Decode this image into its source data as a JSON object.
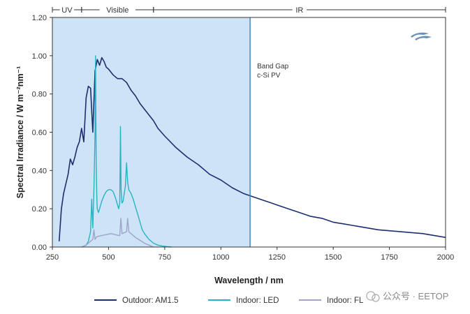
{
  "chart_data": {
    "type": "line",
    "xlabel": "Wavelength / nm",
    "ylabel": "Spectral Irradiance / W m⁻²nm⁻¹",
    "xlim": [
      250,
      2000
    ],
    "ylim": [
      0,
      1.2
    ],
    "x_ticks": [
      250,
      500,
      750,
      1000,
      1250,
      1500,
      1750,
      2000
    ],
    "y_ticks": [
      "0.00",
      "0.20",
      "0.40",
      "0.60",
      "0.80",
      "1.00",
      "1.20"
    ],
    "grid": false,
    "legend_position": "bottom",
    "spectral_regions": [
      {
        "label": "UV",
        "from": 250,
        "to": 380
      },
      {
        "label": "Visible",
        "from": 380,
        "to": 700
      },
      {
        "label": "IR",
        "from": 700,
        "to": 2000
      }
    ],
    "band_gap": {
      "wavelength": 1130,
      "label_line1": "Band Gap",
      "label_line2": "c-Si PV"
    },
    "brand": "Ossila",
    "colors": {
      "am15": "#1c2e6e",
      "led": "#26b4c2",
      "fl": "#9ea3cc",
      "shade": "#cfe3f7",
      "bandgap_line": "#4a84c4",
      "axis": "#333333",
      "brand": "#6a8fb5"
    },
    "series": [
      {
        "name": "Outdoor: AM1.5",
        "x": [
          280,
          290,
          300,
          310,
          320,
          330,
          340,
          350,
          360,
          370,
          380,
          390,
          400,
          410,
          420,
          430,
          440,
          450,
          460,
          470,
          480,
          490,
          500,
          520,
          540,
          560,
          580,
          600,
          620,
          640,
          660,
          680,
          700,
          720,
          750,
          800,
          850,
          900,
          950,
          1000,
          1050,
          1100,
          1150,
          1200,
          1250,
          1300,
          1350,
          1400,
          1450,
          1500,
          1550,
          1600,
          1650,
          1700,
          1750,
          1800,
          1850,
          1900,
          1950,
          2000
        ],
        "y": [
          0.03,
          0.2,
          0.28,
          0.33,
          0.38,
          0.46,
          0.43,
          0.47,
          0.52,
          0.55,
          0.62,
          0.55,
          0.78,
          0.84,
          0.83,
          0.6,
          0.92,
          0.98,
          0.95,
          0.99,
          0.97,
          0.94,
          0.93,
          0.9,
          0.88,
          0.88,
          0.86,
          0.82,
          0.79,
          0.75,
          0.72,
          0.69,
          0.66,
          0.62,
          0.58,
          0.52,
          0.47,
          0.43,
          0.38,
          0.35,
          0.31,
          0.28,
          0.26,
          0.24,
          0.22,
          0.2,
          0.18,
          0.16,
          0.15,
          0.13,
          0.12,
          0.11,
          0.1,
          0.09,
          0.085,
          0.08,
          0.075,
          0.07,
          0.06,
          0.05
        ]
      },
      {
        "name": "Indoor: LED",
        "x": [
          380,
          400,
          410,
          420,
          425,
          430,
          435,
          440,
          442,
          445,
          448,
          450,
          455,
          460,
          470,
          480,
          490,
          500,
          510,
          520,
          530,
          540,
          545,
          550,
          553,
          556,
          560,
          565,
          570,
          575,
          580,
          585,
          590,
          600,
          610,
          620,
          630,
          640,
          650,
          660,
          680,
          700,
          720,
          740,
          760,
          780
        ],
        "y": [
          0,
          0.01,
          0.03,
          0.08,
          0.25,
          0.1,
          0.3,
          0.6,
          1.0,
          0.45,
          0.25,
          0.2,
          0.18,
          0.2,
          0.24,
          0.27,
          0.29,
          0.3,
          0.3,
          0.29,
          0.26,
          0.22,
          0.2,
          0.23,
          0.63,
          0.3,
          0.23,
          0.24,
          0.28,
          0.32,
          0.44,
          0.34,
          0.3,
          0.28,
          0.25,
          0.21,
          0.17,
          0.13,
          0.09,
          0.07,
          0.04,
          0.02,
          0.01,
          0.005,
          0.002,
          0
        ]
      },
      {
        "name": "Indoor: FL",
        "x": [
          380,
          400,
          420,
          430,
          435,
          440,
          445,
          450,
          470,
          490,
          510,
          530,
          545,
          550,
          555,
          560,
          580,
          585,
          590,
          600,
          620,
          640,
          660,
          680,
          700
        ],
        "y": [
          0,
          0.01,
          0.03,
          0.04,
          0.09,
          0.04,
          0.05,
          0.055,
          0.06,
          0.065,
          0.07,
          0.065,
          0.06,
          0.06,
          0.15,
          0.07,
          0.08,
          0.15,
          0.08,
          0.07,
          0.05,
          0.035,
          0.02,
          0.01,
          0
        ]
      }
    ]
  },
  "watermark": "公众号 · EETOP"
}
